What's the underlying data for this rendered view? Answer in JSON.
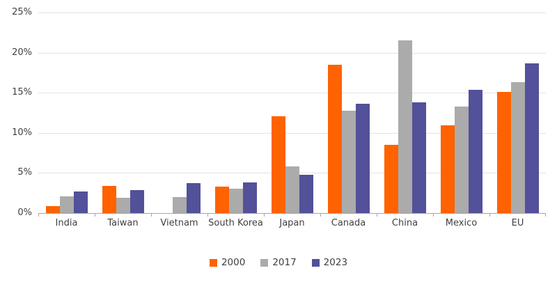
{
  "chart_data": {
    "type": "bar",
    "title": "",
    "xlabel": "",
    "ylabel": "",
    "categories": [
      "India",
      "Taiwan",
      "Vietnam",
      "South Korea",
      "Japan",
      "Canada",
      "China",
      "Mexico",
      "EU"
    ],
    "series": [
      {
        "name": "2000",
        "color": "#ff6200",
        "values": [
          0.9,
          3.4,
          0,
          3.3,
          12.1,
          18.5,
          8.5,
          10.9,
          15.1
        ]
      },
      {
        "name": "2017",
        "color": "#ababab",
        "values": [
          2.1,
          1.9,
          2.0,
          3.0,
          5.8,
          12.8,
          21.5,
          13.3,
          16.3
        ]
      },
      {
        "name": "2023",
        "color": "#525199",
        "values": [
          2.7,
          2.9,
          3.7,
          3.8,
          4.8,
          13.6,
          13.8,
          15.4,
          18.7
        ]
      }
    ],
    "ylim": [
      0,
      25
    ],
    "yticks": [
      0,
      5,
      10,
      15,
      20,
      25
    ],
    "ytick_labels": [
      "0%",
      "5%",
      "10%",
      "15%",
      "20%",
      "25%"
    ],
    "grid": true,
    "legend_position": "bottom"
  },
  "colors": {
    "background": "#ffffff",
    "gridline": "#e2e2e2",
    "axis_line": "#a6a6a6",
    "text": "#404040"
  }
}
